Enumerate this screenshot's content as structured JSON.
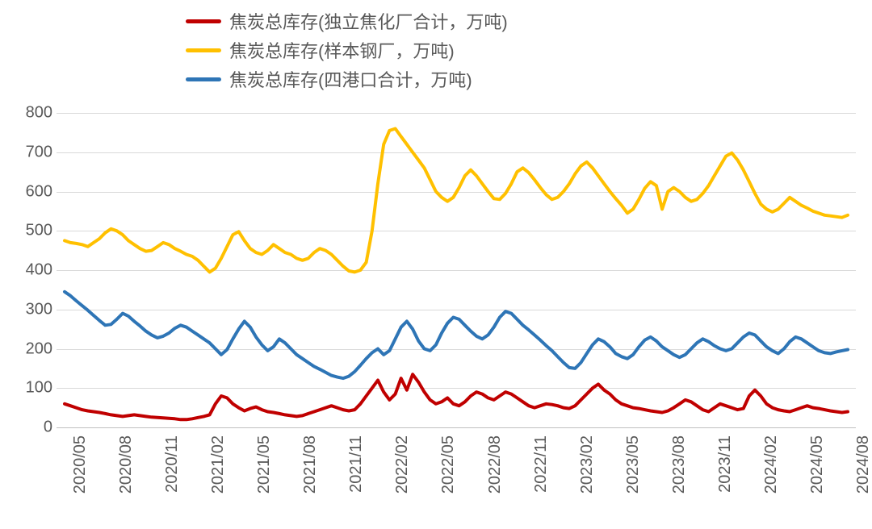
{
  "chart": {
    "type": "line",
    "background_color": "#ffffff",
    "grid_color": "#d9d9d9",
    "axis_color": "#bfbfbf",
    "label_color": "#595959",
    "label_fontsize": 20,
    "legend_fontsize": 22,
    "line_width": 4,
    "ylim": [
      0,
      800
    ],
    "ytick_step": 100,
    "yticks": [
      0,
      100,
      200,
      300,
      400,
      500,
      600,
      700,
      800
    ],
    "x_labels": [
      "2020/05",
      "2020/08",
      "2020/11",
      "2021/02",
      "2021/05",
      "2021/08",
      "2021/11",
      "2022/02",
      "2022/05",
      "2022/08",
      "2022/11",
      "2023/02",
      "2023/05",
      "2023/08",
      "2023/11",
      "2024/02",
      "2024/05",
      "2024/08"
    ],
    "series": [
      {
        "name": "焦炭总库存(独立焦化厂合计，万吨)",
        "color": "#c00000",
        "data": [
          60,
          55,
          50,
          45,
          42,
          40,
          38,
          35,
          32,
          30,
          28,
          30,
          32,
          30,
          28,
          26,
          25,
          24,
          23,
          22,
          20,
          20,
          22,
          25,
          28,
          32,
          60,
          80,
          75,
          60,
          50,
          42,
          48,
          52,
          45,
          40,
          38,
          35,
          32,
          30,
          28,
          30,
          35,
          40,
          45,
          50,
          55,
          50,
          45,
          42,
          45,
          60,
          80,
          100,
          120,
          90,
          70,
          85,
          125,
          95,
          135,
          115,
          90,
          70,
          60,
          65,
          75,
          60,
          55,
          65,
          80,
          90,
          85,
          75,
          70,
          80,
          90,
          85,
          75,
          65,
          55,
          50,
          55,
          60,
          58,
          55,
          50,
          48,
          55,
          70,
          85,
          100,
          110,
          95,
          85,
          70,
          60,
          55,
          50,
          48,
          45,
          42,
          40,
          38,
          42,
          50,
          60,
          70,
          65,
          55,
          45,
          40,
          50,
          60,
          55,
          50,
          45,
          48,
          80,
          95,
          80,
          60,
          50,
          45,
          42,
          40,
          45,
          50,
          55,
          50,
          48,
          45,
          42,
          40,
          38,
          40
        ]
      },
      {
        "name": "焦炭总库存(样本钢厂，万吨)",
        "color": "#ffc000",
        "data": [
          475,
          470,
          468,
          465,
          460,
          470,
          480,
          495,
          505,
          500,
          490,
          475,
          465,
          455,
          448,
          450,
          460,
          470,
          465,
          455,
          448,
          440,
          435,
          425,
          410,
          395,
          405,
          430,
          460,
          490,
          498,
          475,
          455,
          445,
          440,
          450,
          465,
          455,
          445,
          440,
          430,
          425,
          430,
          445,
          455,
          450,
          440,
          425,
          410,
          398,
          395,
          400,
          420,
          500,
          620,
          720,
          755,
          760,
          740,
          720,
          700,
          680,
          660,
          630,
          600,
          585,
          575,
          585,
          610,
          640,
          655,
          640,
          620,
          600,
          582,
          580,
          595,
          620,
          650,
          660,
          648,
          630,
          610,
          592,
          580,
          585,
          600,
          620,
          645,
          665,
          675,
          660,
          640,
          620,
          600,
          582,
          565,
          545,
          555,
          580,
          608,
          625,
          615,
          555,
          600,
          610,
          600,
          585,
          575,
          580,
          595,
          615,
          640,
          665,
          690,
          698,
          680,
          655,
          625,
          595,
          568,
          555,
          548,
          555,
          570,
          585,
          575,
          565,
          558,
          550,
          545,
          540,
          538,
          536,
          534,
          540
        ]
      },
      {
        "name": "焦炭总库存(四港口合计，万吨)",
        "color": "#2e75b6",
        "data": [
          345,
          335,
          322,
          310,
          298,
          285,
          272,
          260,
          262,
          275,
          290,
          283,
          270,
          258,
          245,
          235,
          228,
          232,
          240,
          252,
          260,
          255,
          245,
          235,
          225,
          215,
          200,
          185,
          198,
          225,
          250,
          270,
          255,
          230,
          210,
          195,
          205,
          225,
          215,
          200,
          185,
          175,
          165,
          155,
          148,
          140,
          132,
          128,
          125,
          130,
          142,
          158,
          175,
          190,
          200,
          185,
          195,
          225,
          255,
          270,
          250,
          220,
          200,
          195,
          210,
          240,
          265,
          280,
          275,
          260,
          245,
          232,
          225,
          235,
          255,
          280,
          295,
          290,
          275,
          260,
          248,
          235,
          222,
          208,
          195,
          180,
          165,
          152,
          150,
          165,
          188,
          210,
          225,
          218,
          205,
          188,
          180,
          175,
          185,
          205,
          222,
          230,
          220,
          205,
          195,
          185,
          178,
          185,
          200,
          215,
          225,
          218,
          208,
          200,
          195,
          200,
          215,
          230,
          240,
          235,
          220,
          205,
          195,
          188,
          200,
          218,
          230,
          225,
          215,
          205,
          195,
          190,
          188,
          192,
          195,
          198
        ]
      }
    ]
  }
}
